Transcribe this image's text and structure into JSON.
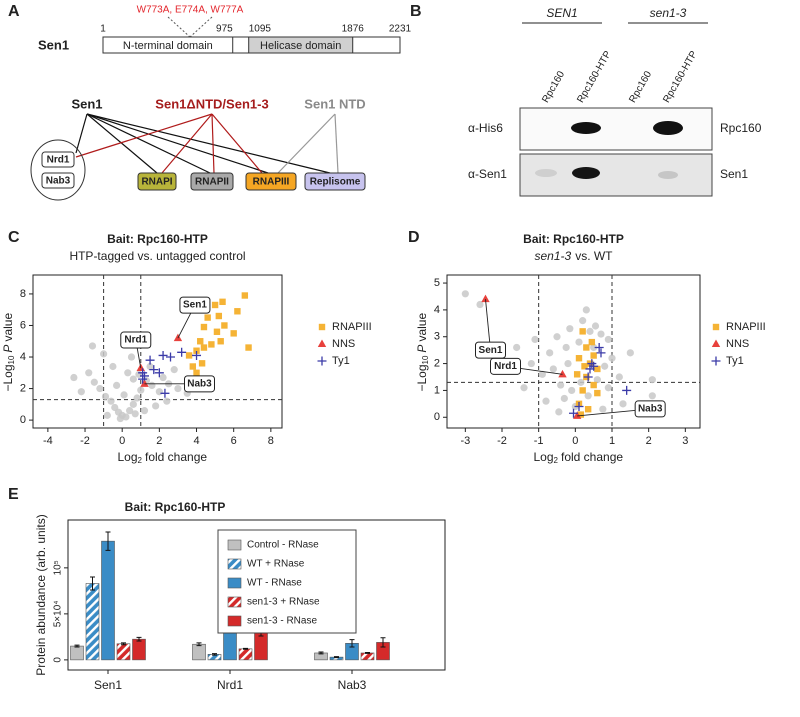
{
  "panel_a": {
    "label": "A",
    "protein": "Sen1",
    "mutations": "W773A, E774A, W777A",
    "positions": [
      1,
      975,
      1095,
      1876,
      2231
    ],
    "domains": [
      "N-terminal domain",
      "Helicase domain"
    ],
    "groups": [
      "Sen1",
      "Sen1ΔNTD/Sen1-3",
      "Sen1 NTD"
    ],
    "targets": [
      "Nrd1",
      "Nab3",
      "RNAPI",
      "RNAPII",
      "RNAPIII",
      "Replisome"
    ]
  },
  "panel_b": {
    "label": "B",
    "strains": [
      "SEN1",
      "sen1-3"
    ],
    "lanes": [
      "Rpc160",
      "Rpc160-HTP",
      "Rpc160",
      "Rpc160-HTP"
    ],
    "antibodies": [
      "α-His6",
      "α-Sen1"
    ],
    "targets": [
      "Rpc160",
      "Sen1"
    ]
  },
  "chart_data": [
    {
      "type": "scatter",
      "label": "C",
      "title": "Bait: Rpc160-HTP",
      "subtitle": "HTP-tagged vs. untagged control",
      "x_label": {
        "base": "Log",
        "sub": "2",
        "rest": "fold change"
      },
      "y_label": {
        "base": "−Log",
        "sub": "10",
        "var": "P",
        "rest": "value"
      },
      "xlim": [
        -4.8,
        8.6
      ],
      "ylim": [
        -0.5,
        9.2
      ],
      "xticks": [
        -4,
        -2,
        0,
        2,
        4,
        6,
        8
      ],
      "yticks": [
        0,
        2,
        4,
        6,
        8
      ],
      "vlines": [
        -1,
        1
      ],
      "hline": 1.3,
      "series": [
        {
          "color": "#c8c8c8",
          "marker": "circle",
          "x": [
            -2.2,
            -1.8,
            -1.5,
            -1.2,
            -0.9,
            -0.6,
            -0.4,
            -0.2,
            0,
            0.2,
            0.4,
            0.6,
            0.8,
            1.0,
            1.3,
            1.6,
            2.0,
            2.5,
            3.0,
            3.5,
            -0.5,
            -1.0,
            -1.6,
            0.3,
            0.6,
            1.8,
            2.4,
            0.1,
            -0.3,
            0.7,
            1.2,
            -0.8,
            3.8,
            2.8,
            -2.6,
            0.5,
            1.5,
            -0.1,
            0.9,
            2.2
          ],
          "y": [
            1.8,
            3.0,
            2.4,
            2.0,
            1.5,
            1.2,
            0.8,
            0.5,
            0.3,
            0.2,
            0.6,
            1.0,
            1.4,
            1.9,
            2.5,
            2.2,
            1.8,
            2.3,
            2.0,
            1.7,
            3.4,
            4.2,
            4.7,
            3.0,
            2.6,
            0.9,
            1.2,
            1.6,
            2.2,
            0.4,
            0.6,
            0.3,
            2.5,
            3.2,
            2.7,
            4.0,
            3.4,
            0.1,
            2.9,
            2.7
          ]
        },
        {
          "name": "RNAPIII",
          "color": "#f5b335",
          "marker": "square",
          "x": [
            6.6,
            6.2,
            5.4,
            5.0,
            5.2,
            4.6,
            4.4,
            5.1,
            5.5,
            4.2,
            4.4,
            4.8,
            4.0,
            3.6,
            4.3,
            6.8,
            4.0,
            3.8,
            5.3,
            6.0
          ],
          "y": [
            7.9,
            6.9,
            7.5,
            7.3,
            6.6,
            6.5,
            5.9,
            5.6,
            6.0,
            5.0,
            4.6,
            4.8,
            4.4,
            4.1,
            3.6,
            4.6,
            3.0,
            3.4,
            5.0,
            5.5
          ]
        },
        {
          "name": "NNS",
          "color": "#e8413c",
          "marker": "triangle",
          "x": [
            3.0,
            1.0,
            1.2
          ],
          "y": [
            5.2,
            3.3,
            2.3
          ],
          "labels": [
            "Sen1",
            "Nrd1",
            "Nab3"
          ]
        },
        {
          "name": "Ty1",
          "color": "#3b3ba8",
          "marker": "plus",
          "x": [
            1.1,
            1.5,
            1.7,
            2.0,
            2.2,
            2.6,
            3.2,
            1.2,
            4.0,
            2.3,
            1.1
          ],
          "y": [
            3.0,
            3.8,
            3.2,
            3.0,
            4.1,
            4.0,
            4.3,
            2.8,
            4.1,
            1.7,
            2.6
          ]
        }
      ]
    },
    {
      "type": "scatter",
      "label": "D",
      "title": "Bait: Rpc160-HTP",
      "subtitle": {
        "italic": "sen1-3",
        "rest": "vs. WT"
      },
      "x_label": {
        "base": "Log",
        "sub": "2",
        "rest": "fold change"
      },
      "y_label": {
        "base": "−Log",
        "sub": "10",
        "var": "P",
        "rest": "value"
      },
      "xlim": [
        -3.5,
        3.4
      ],
      "ylim": [
        -0.4,
        5.3
      ],
      "xticks": [
        -3,
        -2,
        -1,
        0,
        1,
        2,
        3
      ],
      "yticks": [
        0,
        1,
        2,
        3,
        4,
        5
      ],
      "vlines": [
        -1,
        1
      ],
      "hline": 1.3,
      "series": [
        {
          "color": "#c8c8c8",
          "marker": "circle",
          "x": [
            -3.0,
            -2.6,
            -1.6,
            -1.2,
            -0.9,
            -0.7,
            -0.5,
            -0.4,
            -0.3,
            -0.2,
            -0.1,
            0,
            0.1,
            0.2,
            0.3,
            0.4,
            0.5,
            0.6,
            0.7,
            0.8,
            0.9,
            1.0,
            1.2,
            1.5,
            2.1,
            2.1,
            -1.4,
            -0.8,
            -0.6,
            0.15,
            0.35,
            -0.25,
            0.55,
            -1.1,
            1.3,
            -0.45,
            0.75,
            -0.15,
            0.9,
            -2.0
          ],
          "y": [
            4.6,
            4.2,
            2.6,
            2.0,
            1.6,
            2.4,
            3.0,
            1.2,
            0.7,
            2.0,
            1.0,
            0.4,
            2.8,
            3.6,
            4.0,
            3.2,
            2.6,
            1.4,
            3.1,
            1.9,
            1.1,
            2.2,
            1.5,
            2.4,
            0.8,
            1.4,
            1.1,
            0.6,
            1.8,
            1.3,
            0.8,
            2.6,
            3.4,
            2.9,
            0.5,
            0.2,
            0.3,
            3.3,
            2.9,
            2.4
          ]
        },
        {
          "name": "RNAPIII",
          "color": "#f5b335",
          "marker": "square",
          "x": [
            0.1,
            0.2,
            0.3,
            0.4,
            0.5,
            0.3,
            0.2,
            0.6,
            0.5,
            0.1,
            0.35,
            0.15,
            0.45,
            0.25,
            0.6,
            0.05
          ],
          "y": [
            0.5,
            1.0,
            1.5,
            2.0,
            2.3,
            2.6,
            3.2,
            1.8,
            1.2,
            2.2,
            0.3,
            0.1,
            2.8,
            1.9,
            0.9,
            1.6
          ]
        },
        {
          "name": "NNS",
          "color": "#e8413c",
          "marker": "triangle",
          "x": [
            -2.45,
            -0.35,
            0.05
          ],
          "y": [
            4.4,
            1.6,
            0.05
          ],
          "labels": [
            "Sen1",
            "Nrd1",
            "Nab3"
          ]
        },
        {
          "name": "Ty1",
          "color": "#3b3ba8",
          "marker": "plus",
          "x": [
            0.7,
            0.65,
            0.4,
            0.45,
            0.35,
            1.4,
            0.1,
            -0.05,
            0.5
          ],
          "y": [
            2.4,
            2.6,
            1.8,
            2.0,
            1.5,
            1.0,
            0.4,
            0.15,
            1.9
          ]
        }
      ]
    },
    {
      "type": "bar",
      "label": "E",
      "title": "Bait: Rpc160-HTP",
      "y_label": "Protein abundance (arb. units)",
      "categories": [
        "Sen1",
        "Nrd1",
        "Nab3"
      ],
      "ylim": [
        -11000,
        152000
      ],
      "yticks": [
        0,
        {
          "value": 50000,
          "label": "5×10⁴"
        },
        {
          "value": 100000,
          "label": "10⁵"
        }
      ],
      "series": [
        {
          "name": "Control - RNase",
          "color": "#c0c0c0",
          "hatch": false,
          "values": [
            15000,
            17000,
            7500
          ],
          "errors": [
            1000,
            1500,
            1000
          ]
        },
        {
          "name": "WT + RNase",
          "color": "#3a8cc6",
          "hatch": true,
          "values": [
            83000,
            6000,
            3000
          ],
          "errors": [
            7000,
            800,
            500
          ]
        },
        {
          "name": "WT - RNase",
          "color": "#3a8cc6",
          "hatch": false,
          "values": [
            129000,
            32000,
            18000
          ],
          "errors": [
            10000,
            1500,
            4000
          ]
        },
        {
          "name": "sen1-3 + RNase",
          "color": "#d42a2a",
          "hatch": true,
          "values": [
            17500,
            12000,
            7500
          ],
          "errors": [
            1000,
            500,
            500
          ]
        },
        {
          "name": "sen1-3 - RNase",
          "color": "#d42a2a",
          "hatch": false,
          "values": [
            22500,
            29000,
            19000
          ],
          "errors": [
            2000,
            3000,
            5000
          ]
        }
      ]
    }
  ]
}
